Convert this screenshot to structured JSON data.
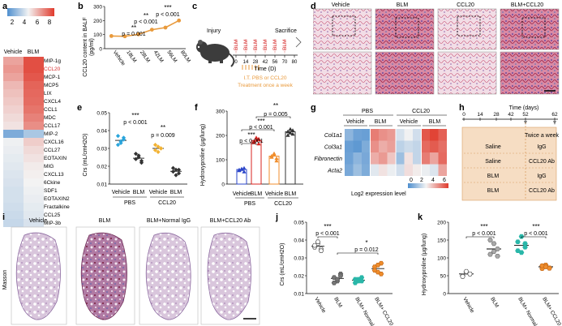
{
  "panels": {
    "a": {
      "label": "a",
      "colorbar_ticks": [
        "2",
        "4",
        "6",
        "8"
      ],
      "columns": [
        "Vehicle",
        "BLM"
      ],
      "genes": [
        "MIP-1g",
        "CCL20",
        "MCP-1",
        "MCP5",
        "LIX",
        "CXCL4",
        "CCL1",
        "MDC",
        "CCL17",
        "MIP-2",
        "CXCL16",
        "CCL27",
        "EOTAXIN",
        "MIG",
        "CXCL13",
        "6Ckine",
        "SDF1",
        "EOTAXIN2",
        "Fractalkine",
        "CCL25",
        "MIP-3b"
      ],
      "highlight_gene": "CCL20"
    },
    "b": {
      "label": "b",
      "title": "CCL20 content in BALF",
      "ylabel": "(pg/ml)",
      "pvalues": [
        "p = 0.001",
        "p < 0.001",
        "p < 0.001"
      ],
      "stars": [
        "**",
        "**",
        "***"
      ]
    },
    "c": {
      "label": "c",
      "injury": "Injury",
      "sacrifice": "Sacrifice",
      "blm_markers": [
        "BLM",
        "BLM",
        "BLM",
        "BLM",
        "BLM",
        "BLM",
        "BLM"
      ],
      "days": [
        "0",
        "14",
        "28",
        "42",
        "56",
        "70",
        "80"
      ],
      "time_label": "Time (D)",
      "treatment_line1": "I.T. PBS or CCL20",
      "treatment_line2": "Treatment once a week"
    },
    "d": {
      "label": "d",
      "columns": [
        "Vehicle",
        "BLM",
        "CCL20",
        "BLM+CCL20"
      ]
    },
    "e": {
      "label": "e",
      "ylabel": "Crs (mL/cmH2O)",
      "pvalues": [
        "p < 0.001",
        "p = 0.009"
      ],
      "stars": [
        "***",
        "**"
      ],
      "group_labels": [
        "Vehicle",
        "BLM",
        "Vehicle",
        "BLM"
      ],
      "treatments": [
        "PBS",
        "CCL20"
      ]
    },
    "f": {
      "label": "f",
      "ylabel": "Hydroxyproline (μg/lung)",
      "pvalues": [
        "p < 0.001",
        "p < 0.001",
        "p = 0.005"
      ],
      "stars": [
        "***",
        "***",
        "**"
      ],
      "group_labels": [
        "Vehicle",
        "BLM",
        "Vehicle",
        "BLM"
      ],
      "treatments": [
        "PBS",
        "CCL20"
      ]
    },
    "g": {
      "label": "g",
      "groups": [
        "PBS",
        "CCL20"
      ],
      "subgroups": [
        "Vehicle",
        "BLM",
        "Vehicle",
        "BLM"
      ],
      "genes": [
        "Col1a1",
        "Col3a1",
        "Fibronectin",
        "Acta2"
      ],
      "legend_title": "Log2 expression level",
      "legend_ticks": [
        "0",
        "2",
        "4",
        "6"
      ]
    },
    "h": {
      "label": "h",
      "title": "Time (days)",
      "days": [
        "0",
        "14",
        "28",
        "42",
        "52",
        "62"
      ],
      "note": "Twice a week",
      "rows": [
        {
          "left": "Saline",
          "right": "IgG"
        },
        {
          "left": "Saline",
          "right": "CCL20 Ab"
        },
        {
          "left": "BLM",
          "right": "IgG"
        },
        {
          "left": "BLM",
          "right": "CCL20 Ab"
        }
      ]
    },
    "i": {
      "label": "i",
      "stain": "Masson",
      "columns": [
        "Vehicle",
        "BLM",
        "BLM+Normal IgG",
        "BLM+CCL20 Ab"
      ]
    },
    "j": {
      "label": "j",
      "ylabel": "Crs (mL/cmH2O)",
      "pvalues": [
        "p < 0.001",
        "p = 0.012"
      ],
      "stars": [
        "***",
        "*"
      ],
      "group_labels": [
        "Vehicle",
        "BLM",
        "BLM+\nNormal IgG",
        "BLM+\nCCL20 Ab"
      ]
    },
    "k": {
      "label": "k",
      "ylabel": "Hydroxyproline (μg/lung)",
      "pvalues": [
        "p < 0.001",
        "p < 0.001"
      ],
      "stars": [
        "***",
        "***"
      ],
      "group_labels": [
        "Vehicle",
        "BLM",
        "BLM+\nNormal IgG",
        "BLM+\nCCL20 Ab"
      ]
    }
  },
  "colors": {
    "heat_low": "#4f8fcf",
    "heat_mid": "#f3f3f3",
    "heat_high": "#e03a2c",
    "line": "#e99a3c",
    "blue_dot": "#2aa5dc",
    "dark_dot": "#333333",
    "yellow_dot": "#f2b233",
    "bar_blue": "#2a45c9",
    "bar_red": "#d8231f",
    "bar_orange": "#f08d2c",
    "highlight": "#d72a2a"
  },
  "chart_data": [
    {
      "id": "a",
      "type": "heatmap",
      "rows": [
        "MIP-1g",
        "CCL20",
        "MCP-1",
        "MCP5",
        "LIX",
        "CXCL4",
        "CCL1",
        "MDC",
        "CCL17",
        "MIP-2",
        "CXCL16",
        "CCL27",
        "EOTAXIN",
        "MIG",
        "CXCL13",
        "6Ckine",
        "SDF1",
        "EOTAXIN2",
        "Fractalkine",
        "CCL25",
        "MIP-3b"
      ],
      "cols": [
        "Vehicle",
        "BLM"
      ],
      "values": [
        [
          6.5,
          8.5
        ],
        [
          6.8,
          8.5
        ],
        [
          6.5,
          8.3
        ],
        [
          6.0,
          8.0
        ],
        [
          5.8,
          7.9
        ],
        [
          5.6,
          7.8
        ],
        [
          5.4,
          7.6
        ],
        [
          5.2,
          7.3
        ],
        [
          5.0,
          7.0
        ],
        [
          2.0,
          3.0
        ],
        [
          4.5,
          5.5
        ],
        [
          4.4,
          5.2
        ],
        [
          4.3,
          5.0
        ],
        [
          4.2,
          4.8
        ],
        [
          4.1,
          4.7
        ],
        [
          4.0,
          4.6
        ],
        [
          3.9,
          4.5
        ],
        [
          3.9,
          4.4
        ],
        [
          3.8,
          4.3
        ],
        [
          3.7,
          4.2
        ],
        [
          3.6,
          4.0
        ]
      ],
      "scale": [
        1,
        9
      ]
    },
    {
      "id": "b",
      "type": "line",
      "title": "CCL20 content in BALF",
      "ylabel": "(pg/ml)",
      "categories": [
        "Vehicle",
        "18LM",
        "28LM",
        "42LM",
        "56LM",
        "80LM"
      ],
      "values": [
        90,
        88,
        102,
        135,
        150,
        200
      ],
      "ylim": [
        0,
        300
      ],
      "yticks": [
        0,
        100,
        200,
        300
      ]
    },
    {
      "id": "e",
      "type": "scatter",
      "ylabel": "Crs (mL/cmH2O)",
      "categories": [
        "Vehicle",
        "BLM",
        "Vehicle",
        "BLM"
      ],
      "treatments": [
        "PBS",
        "PBS",
        "CCL20",
        "CCL20"
      ],
      "values": [
        [
          0.032,
          0.034,
          0.036,
          0.037,
          0.033,
          0.035
        ],
        [
          0.024,
          0.026,
          0.023,
          0.027,
          0.025,
          0.022
        ],
        [
          0.029,
          0.031,
          0.03,
          0.032,
          0.028,
          0.03
        ],
        [
          0.017,
          0.018,
          0.016,
          0.019,
          0.015,
          0.018
        ]
      ],
      "ylim": [
        0.01,
        0.05
      ],
      "yticks": [
        0.01,
        0.02,
        0.03,
        0.04,
        0.05
      ]
    },
    {
      "id": "f",
      "type": "bar",
      "ylabel": "Hydroxyproline (μg/lung)",
      "categories": [
        "Vehicle",
        "BLM",
        "Vehicle",
        "BLM"
      ],
      "treatments": [
        "PBS",
        "PBS",
        "CCL20",
        "CCL20"
      ],
      "values": [
        60,
        178,
        115,
        215
      ],
      "points": [
        [
          55,
          60,
          65,
          58,
          62,
          50
        ],
        [
          170,
          180,
          185,
          175,
          190,
          165
        ],
        [
          110,
          120,
          105,
          115,
          125,
          95
        ],
        [
          200,
          210,
          220,
          215,
          225,
          205
        ]
      ],
      "ylim": [
        0,
        300
      ],
      "yticks": [
        0,
        100,
        200,
        300
      ]
    },
    {
      "id": "g",
      "type": "heatmap",
      "rows": [
        "Col1a1",
        "Col3a1",
        "Fibronectin",
        "Acta2"
      ],
      "cols": [
        "PBS Vehicle",
        "PBS BLM",
        "CCL20 Vehicle",
        "CCL20 BLM"
      ],
      "samples_per_group": 3,
      "values": [
        [
          1.2,
          0.6,
          0.5,
          5.6,
          5.2,
          5.0,
          2.6,
          3.1,
          2.5,
          6.4,
          6.8,
          6.2
        ],
        [
          0.5,
          0.3,
          0.9,
          5.2,
          4.6,
          4.9,
          2.1,
          2.4,
          2.2,
          6.0,
          6.3,
          5.9
        ],
        [
          0.6,
          1.2,
          0.8,
          4.6,
          5.0,
          4.1,
          1.5,
          3.5,
          2.2,
          5.6,
          4.8,
          6.0
        ],
        [
          0.8,
          1.5,
          0.9,
          2.8,
          3.5,
          3.0,
          2.5,
          3.6,
          3.3,
          3.0,
          2.7,
          4.8
        ]
      ],
      "scale": [
        0,
        7
      ]
    },
    {
      "id": "j",
      "type": "scatter",
      "ylabel": "Crs (mL/cmH2O)",
      "categories": [
        "Vehicle",
        "BLM",
        "BLM+Normal IgG",
        "BLM+CCL20 Ab"
      ],
      "values": [
        [
          0.036,
          0.038,
          0.035,
          0.037,
          0.039,
          0.034
        ],
        [
          0.019,
          0.017,
          0.021,
          0.016,
          0.018,
          0.02
        ],
        [
          0.018,
          0.017,
          0.019,
          0.016,
          0.018,
          0.017
        ],
        [
          0.025,
          0.022,
          0.027,
          0.023,
          0.026,
          0.021
        ]
      ],
      "ylim": [
        0.01,
        0.05
      ],
      "yticks": [
        0.01,
        0.02,
        0.03,
        0.04,
        0.05
      ]
    },
    {
      "id": "k",
      "type": "scatter",
      "ylabel": "Hydroxyproline (μg/lung)",
      "categories": [
        "Vehicle",
        "BLM",
        "BLM+Normal IgG",
        "BLM+CCL20 Ab"
      ],
      "means": [
        55,
        125,
        135,
        75
      ],
      "values": [
        [
          50,
          60,
          55,
          48,
          62,
          55
        ],
        [
          110,
          140,
          125,
          150,
          118,
          105
        ],
        [
          120,
          160,
          130,
          145,
          115,
          140
        ],
        [
          70,
          80,
          72,
          78,
          75,
          71
        ]
      ],
      "ylim": [
        0,
        200
      ],
      "yticks": [
        0,
        50,
        100,
        150,
        200
      ]
    }
  ]
}
